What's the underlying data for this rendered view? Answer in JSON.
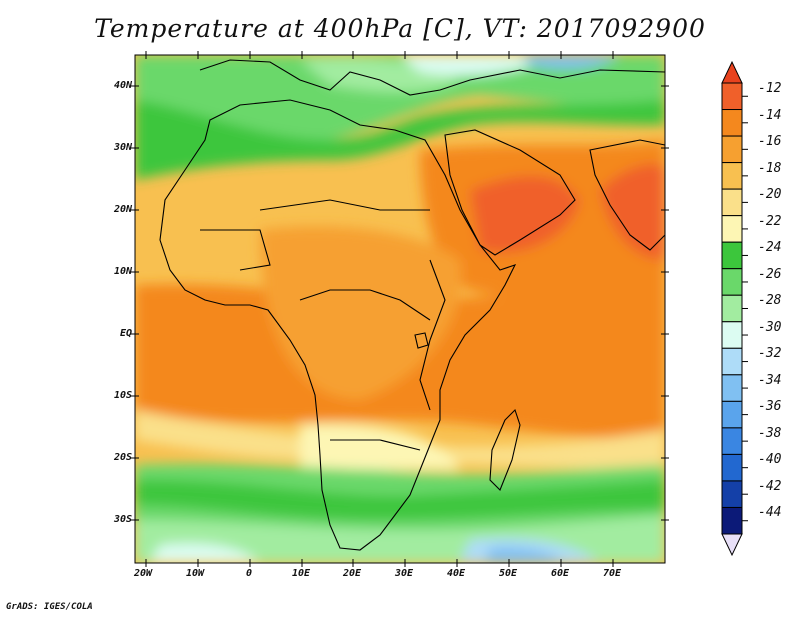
{
  "title": "Temperature at 400hPa [C], VT: 2017092900",
  "credit": "GrADS: IGES/COLA",
  "map": {
    "projection": "latlon",
    "lon_range": [
      -23,
      80
    ],
    "lat_range": [
      -37,
      45
    ],
    "lat_ticks": [
      {
        "label": "40N",
        "lat": 40
      },
      {
        "label": "30N",
        "lat": 30
      },
      {
        "label": "20N",
        "lat": 20
      },
      {
        "label": "10N",
        "lat": 10
      },
      {
        "label": "EQ",
        "lat": 0
      },
      {
        "label": "10S",
        "lat": -10
      },
      {
        "label": "20S",
        "lat": -20
      },
      {
        "label": "30S",
        "lat": -30
      }
    ],
    "lon_ticks": [
      {
        "label": "20W",
        "lon": -20
      },
      {
        "label": "10W",
        "lon": -10
      },
      {
        "label": "0",
        "lon": 0
      },
      {
        "label": "10E",
        "lon": 10
      },
      {
        "label": "20E",
        "lon": 20
      },
      {
        "label": "30E",
        "lon": 30
      },
      {
        "label": "40E",
        "lon": 40
      },
      {
        "label": "50E",
        "lon": 50
      },
      {
        "label": "60E",
        "lon": 60
      },
      {
        "label": "70E",
        "lon": 70
      }
    ]
  },
  "colorbar": {
    "levels": [
      {
        "label": "-12",
        "color": "#f0602a"
      },
      {
        "label": "-14",
        "color": "#f4881e"
      },
      {
        "label": "-16",
        "color": "#f6a030"
      },
      {
        "label": "-18",
        "color": "#f8c050"
      },
      {
        "label": "-20",
        "color": "#fae08a"
      },
      {
        "label": "-22",
        "color": "#fdf6b4"
      },
      {
        "label": "-24",
        "color": "#3cc63c"
      },
      {
        "label": "-26",
        "color": "#6ad86a"
      },
      {
        "label": "-28",
        "color": "#a2eca0"
      },
      {
        "label": "-30",
        "color": "#dcfcf2"
      },
      {
        "label": "-32",
        "color": "#aedcf8"
      },
      {
        "label": "-34",
        "color": "#80c0f2"
      },
      {
        "label": "-36",
        "color": "#5aa4ec"
      },
      {
        "label": "-38",
        "color": "#3a86e2"
      },
      {
        "label": "-40",
        "color": "#2268d0"
      },
      {
        "label": "-42",
        "color": "#1440a8"
      },
      {
        "label": "-44",
        "color": "#0c1a78"
      }
    ],
    "top_triangle_color": "#e8421e",
    "bottom_triangle_color": "#e8e0f8"
  }
}
